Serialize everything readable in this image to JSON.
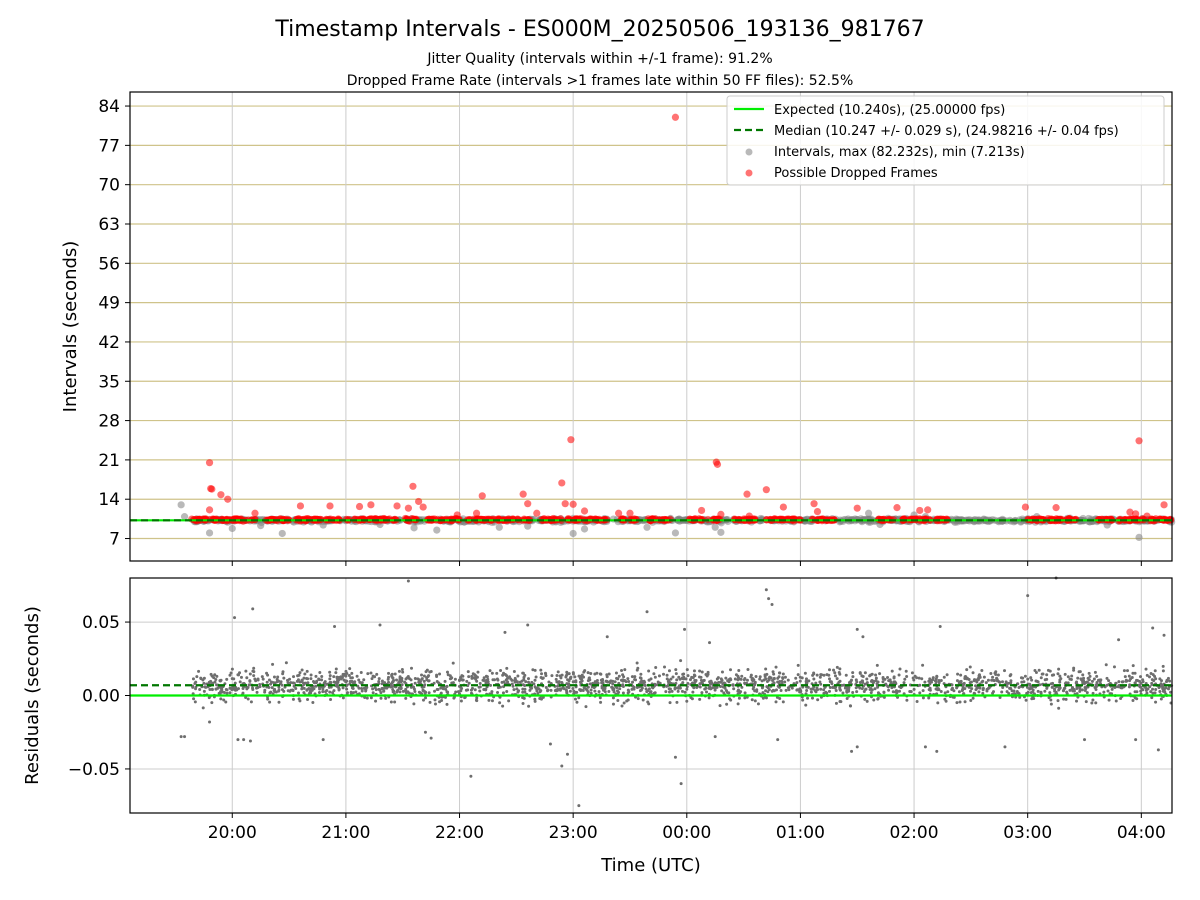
{
  "chart_data": [
    {
      "type": "scatter",
      "title": "Timestamp Intervals - ES000M_20250506_193136_981767",
      "subtitle_lines": [
        "Jitter Quality (intervals within +/-1 frame): 91.2%",
        "Dropped Frame Rate (intervals >1 frames late within 50 FF files): 52.5%"
      ],
      "xlabel": "",
      "ylabel": "Intervals (seconds)",
      "x_start_hour_offset": -0.9,
      "x_end_hour_offset": 8.27,
      "xlim": [
        -0.9,
        8.27
      ],
      "ylim": [
        3.0,
        86.5
      ],
      "yticks": [
        7,
        14,
        21,
        28,
        35,
        42,
        49,
        56,
        63,
        70,
        77,
        84
      ],
      "expected_line": 10.24,
      "median_line": 10.247,
      "legend_position": "top-right",
      "legend": [
        "Expected (10.240s), (25.00000 fps)",
        "Median (10.247 +/- 0.029 s), (24.98216 +/- 0.04 fps)",
        "Intervals, max (82.232s), min (7.213s)",
        "Possible Dropped Frames"
      ],
      "series": [
        {
          "name": "Intervals",
          "color": "#808080",
          "note": "dense band around 10.24 s across the full time range",
          "points": [
            [
              -0.45,
              13.0
            ],
            [
              -0.42,
              10.9
            ],
            [
              -0.2,
              8.0
            ],
            [
              0.0,
              8.8
            ],
            [
              0.25,
              9.3
            ],
            [
              0.44,
              7.9
            ],
            [
              0.8,
              9.4
            ],
            [
              1.3,
              9.5
            ],
            [
              1.6,
              8.9
            ],
            [
              1.8,
              8.5
            ],
            [
              2.35,
              9.0
            ],
            [
              2.6,
              9.2
            ],
            [
              3.0,
              7.9
            ],
            [
              3.1,
              8.7
            ],
            [
              3.65,
              9.0
            ],
            [
              3.9,
              8.0
            ],
            [
              4.25,
              9.0
            ],
            [
              4.3,
              8.1
            ],
            [
              5.6,
              11.5
            ],
            [
              5.7,
              9.5
            ],
            [
              6.0,
              11.2
            ],
            [
              6.1,
              10.9
            ],
            [
              7.08,
              10.9
            ],
            [
              7.35,
              10.6
            ],
            [
              7.7,
              9.4
            ],
            [
              7.98,
              7.2
            ],
            [
              8.05,
              10.4
            ]
          ]
        },
        {
          "name": "Possible Dropped Frames",
          "color": "#ff0000",
          "note": "dense band around 10.24 s across the full time range",
          "points": [
            [
              -0.2,
              20.5
            ],
            [
              -0.19,
              15.9
            ],
            [
              -0.18,
              15.8
            ],
            [
              -0.2,
              12.1
            ],
            [
              -0.1,
              14.8
            ],
            [
              -0.04,
              14.0
            ],
            [
              0.2,
              11.5
            ],
            [
              0.6,
              12.8
            ],
            [
              0.86,
              12.8
            ],
            [
              1.12,
              12.7
            ],
            [
              1.22,
              13.0
            ],
            [
              1.45,
              12.8
            ],
            [
              1.55,
              12.4
            ],
            [
              1.59,
              16.3
            ],
            [
              1.64,
              13.6
            ],
            [
              1.68,
              12.6
            ],
            [
              1.98,
              11.2
            ],
            [
              2.15,
              11.5
            ],
            [
              2.2,
              14.6
            ],
            [
              2.56,
              14.9
            ],
            [
              2.6,
              13.2
            ],
            [
              2.68,
              11.5
            ],
            [
              2.9,
              16.9
            ],
            [
              2.93,
              13.2
            ],
            [
              2.98,
              24.6
            ],
            [
              3.0,
              13.1
            ],
            [
              3.1,
              11.9
            ],
            [
              3.4,
              11.5
            ],
            [
              3.5,
              11.5
            ],
            [
              3.9,
              82.0
            ],
            [
              4.13,
              12.0
            ],
            [
              4.26,
              20.6
            ],
            [
              4.27,
              20.2
            ],
            [
              4.3,
              11.3
            ],
            [
              4.53,
              14.9
            ],
            [
              4.55,
              11.0
            ],
            [
              4.7,
              15.7
            ],
            [
              4.85,
              12.6
            ],
            [
              5.12,
              13.2
            ],
            [
              5.15,
              11.8
            ],
            [
              5.5,
              12.4
            ],
            [
              5.85,
              12.5
            ],
            [
              6.05,
              12.0
            ],
            [
              6.12,
              12.1
            ],
            [
              6.98,
              12.6
            ],
            [
              7.25,
              12.5
            ],
            [
              7.9,
              11.7
            ],
            [
              7.95,
              11.4
            ],
            [
              7.98,
              24.4
            ],
            [
              8.2,
              13.0
            ],
            [
              8.05,
              11.0
            ]
          ]
        }
      ]
    },
    {
      "type": "scatter",
      "title": "",
      "xlabel": "Time (UTC)",
      "ylabel": "Residuals (seconds)",
      "xlim": [
        -0.9,
        8.27
      ],
      "ylim": [
        -0.08,
        0.08
      ],
      "yticks": [
        -0.05,
        0.0,
        0.05
      ],
      "ytick_labels": [
        "−0.05",
        "0.00",
        "0.05"
      ],
      "xticks": [
        0,
        1,
        2,
        3,
        4,
        5,
        6,
        7,
        8
      ],
      "xtick_labels": [
        "20:00",
        "21:00",
        "22:00",
        "23:00",
        "00:00",
        "01:00",
        "02:00",
        "03:00",
        "04:00"
      ],
      "expected_line": 0.0,
      "median_line": 0.007,
      "series": [
        {
          "name": "Residuals",
          "color": "#6e6e6e",
          "note": "dense scatter between about -0.03 and 0.04 around 0.007",
          "points": [
            [
              -0.45,
              -0.028
            ],
            [
              -0.42,
              -0.028
            ],
            [
              -0.2,
              -0.018
            ],
            [
              0.02,
              0.053
            ],
            [
              0.05,
              -0.03
            ],
            [
              0.1,
              -0.03
            ],
            [
              0.16,
              -0.031
            ],
            [
              0.18,
              0.059
            ],
            [
              0.8,
              -0.03
            ],
            [
              0.9,
              0.047
            ],
            [
              1.3,
              0.048
            ],
            [
              1.55,
              0.078
            ],
            [
              1.7,
              -0.025
            ],
            [
              1.75,
              -0.029
            ],
            [
              2.1,
              -0.055
            ],
            [
              2.4,
              0.043
            ],
            [
              2.6,
              0.048
            ],
            [
              2.8,
              -0.033
            ],
            [
              2.9,
              -0.048
            ],
            [
              2.95,
              -0.04
            ],
            [
              3.05,
              -0.075
            ],
            [
              3.3,
              0.04
            ],
            [
              3.65,
              0.057
            ],
            [
              3.9,
              -0.042
            ],
            [
              3.95,
              -0.06
            ],
            [
              3.98,
              0.045
            ],
            [
              4.2,
              0.036
            ],
            [
              4.25,
              -0.028
            ],
            [
              4.7,
              0.072
            ],
            [
              4.72,
              0.066
            ],
            [
              4.75,
              0.062
            ],
            [
              4.8,
              -0.03
            ],
            [
              5.5,
              0.045
            ],
            [
              5.55,
              0.04
            ],
            [
              5.5,
              -0.035
            ],
            [
              5.45,
              -0.038
            ],
            [
              6.1,
              -0.035
            ],
            [
              6.2,
              -0.038
            ],
            [
              6.23,
              0.047
            ],
            [
              6.8,
              -0.035
            ],
            [
              7.0,
              0.068
            ],
            [
              7.25,
              0.08
            ],
            [
              7.5,
              -0.03
            ],
            [
              7.8,
              0.038
            ],
            [
              7.95,
              -0.03
            ],
            [
              8.1,
              0.046
            ],
            [
              8.15,
              -0.037
            ],
            [
              8.2,
              0.041
            ]
          ]
        }
      ]
    }
  ]
}
